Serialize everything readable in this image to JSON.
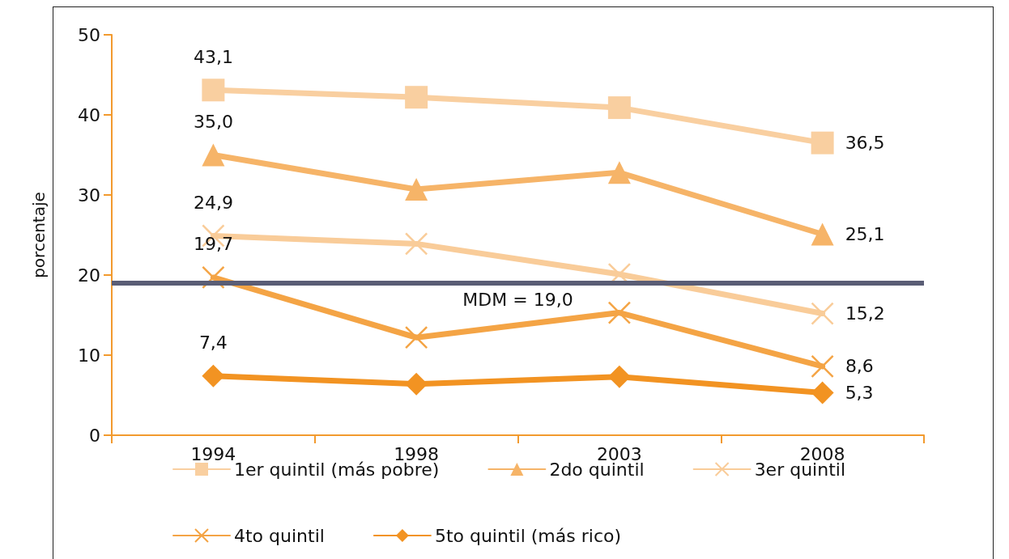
{
  "chart_data": {
    "type": "line",
    "ylabel": "porcentaje",
    "categories": [
      "1994",
      "1998",
      "2003",
      "2008"
    ],
    "series": [
      {
        "name": "1er quintil (más pobre)",
        "color": "#f9cfa0",
        "marker": "square",
        "values": [
          43.1,
          42.2,
          40.9,
          36.5
        ],
        "value_labels": [
          "43,1",
          null,
          null,
          "36,5"
        ]
      },
      {
        "name": "2do quintil",
        "color": "#f6b468",
        "marker": "triangle",
        "values": [
          35.0,
          30.7,
          32.8,
          25.1
        ],
        "value_labels": [
          "35,0",
          null,
          null,
          "25,1"
        ]
      },
      {
        "name": "3er quintil",
        "color": "#f9cc99",
        "marker": "cross",
        "values": [
          24.9,
          23.9,
          20.1,
          15.2
        ],
        "value_labels": [
          "24,9",
          null,
          null,
          "15,2"
        ]
      },
      {
        "name": "4to quintil",
        "color": "#f4a445",
        "marker": "cross",
        "values": [
          19.7,
          12.2,
          15.3,
          8.6
        ],
        "value_labels": [
          "19,7",
          null,
          null,
          "8,6"
        ]
      },
      {
        "name": "5to quintil (más rico)",
        "color": "#f29322",
        "marker": "diamond",
        "values": [
          7.4,
          6.4,
          7.3,
          5.3
        ],
        "value_labels": [
          "7,4",
          null,
          null,
          "5,3"
        ]
      }
    ],
    "ylim": [
      0,
      50
    ],
    "yticks": [
      0,
      10,
      20,
      30,
      40,
      50
    ],
    "ref_lines": [
      {
        "axis": "y",
        "value": 19.0,
        "label": "MDM = 19,0",
        "color": "#5a5d75"
      }
    ],
    "grid": false,
    "legend": "bottom",
    "line_style": "solid"
  }
}
